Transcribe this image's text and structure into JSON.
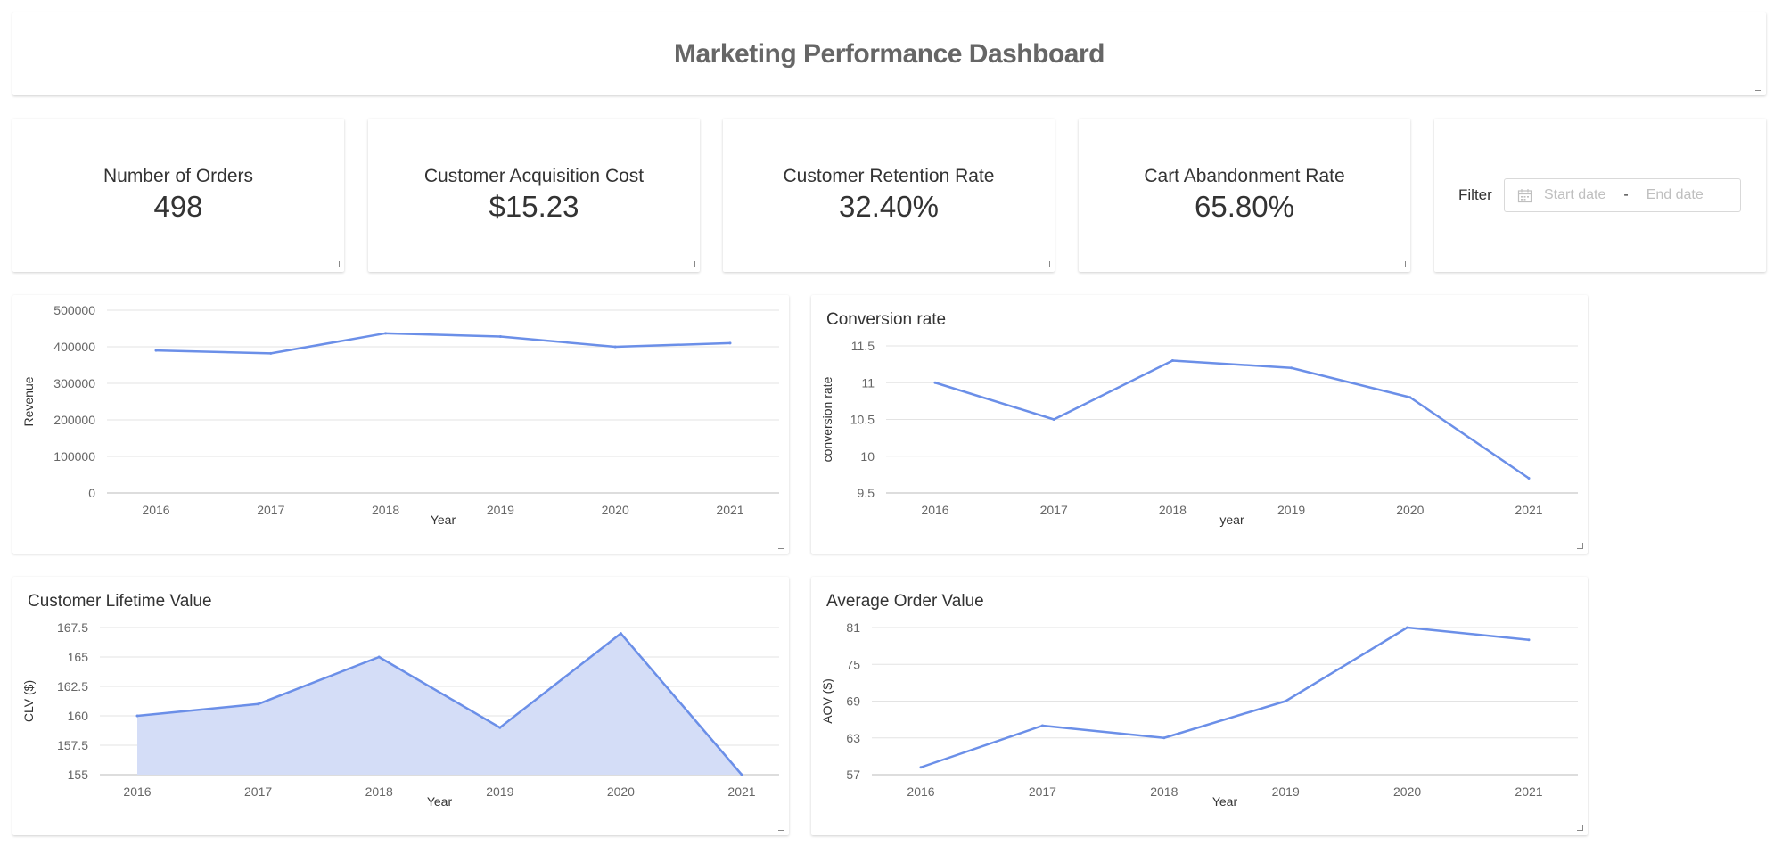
{
  "header": {
    "title": "Marketing Performance Dashboard"
  },
  "kpis": [
    {
      "label": "Number of Orders",
      "value": "498"
    },
    {
      "label": "Customer Acquisition Cost",
      "value": "$15.23"
    },
    {
      "label": "Customer Retention Rate",
      "value": "32.40%"
    },
    {
      "label": "Cart Abandonment Rate",
      "value": "65.80%"
    }
  ],
  "filter": {
    "label": "Filter",
    "start_placeholder": "Start date",
    "separator": "-",
    "end_placeholder": "End date"
  },
  "colors": {
    "line": "#6b8fe8",
    "area": "#d4ddf7",
    "grid": "#e3e3e3",
    "axis": "#666666"
  },
  "chart_data": [
    {
      "id": "revenue",
      "type": "line",
      "title": "",
      "categories": [
        "2016",
        "2017",
        "2018",
        "2019",
        "2020",
        "2021"
      ],
      "values": [
        390000,
        382000,
        437000,
        428000,
        400000,
        410000
      ],
      "xlabel": "Year",
      "ylabel": "Revenue",
      "ylim": [
        0,
        500000
      ],
      "yticks": [
        "0",
        "100000",
        "200000",
        "300000",
        "400000",
        "500000"
      ]
    },
    {
      "id": "conversion",
      "type": "line",
      "title": "Conversion rate",
      "categories": [
        "2016",
        "2017",
        "2018",
        "2019",
        "2020",
        "2021"
      ],
      "values": [
        11.0,
        10.5,
        11.3,
        11.2,
        10.8,
        9.7
      ],
      "xlabel": "year",
      "ylabel": "conversion rate",
      "ylim": [
        9.5,
        11.5
      ],
      "yticks": [
        "9.5",
        "10",
        "10.5",
        "11",
        "11.5"
      ]
    },
    {
      "id": "clv",
      "type": "area",
      "title": "Customer Lifetime Value",
      "categories": [
        "2016",
        "2017",
        "2018",
        "2019",
        "2020",
        "2021"
      ],
      "values": [
        160,
        161,
        165,
        159,
        167,
        155
      ],
      "xlabel": "Year",
      "ylabel": "CLV ($)",
      "ylim": [
        155,
        167.5
      ],
      "yticks": [
        "155",
        "157.5",
        "160",
        "162.5",
        "165",
        "167.5"
      ]
    },
    {
      "id": "aov",
      "type": "line",
      "title": "Average Order Value",
      "categories": [
        "2016",
        "2017",
        "2018",
        "2019",
        "2020",
        "2021"
      ],
      "values": [
        58.2,
        65,
        63,
        69,
        81,
        79
      ],
      "xlabel": "Year",
      "ylabel": "AOV ($)",
      "ylim": [
        57,
        81
      ],
      "yticks": [
        "57",
        "63",
        "69",
        "75",
        "81"
      ]
    }
  ]
}
